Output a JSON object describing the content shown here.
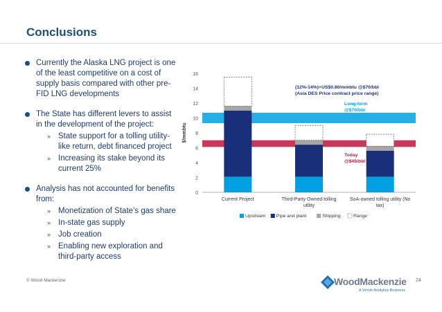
{
  "slide": {
    "title": "Conclusions",
    "footer_left": "© Wood Mackenzie",
    "page_number": "24",
    "logo_word": "WoodMackenzie",
    "logo_sub": "A Verisk Analytics Business"
  },
  "bullets": [
    {
      "text": "Currently the Alaska LNG project is one of the least competitive on a cost of supply basis compared with other pre-FID LNG developments",
      "subs": []
    },
    {
      "text": "The State has different  levers to assist in the development of the project:",
      "subs": [
        "State support for a tolling utility-like return, debt financed project",
        "Increasing its stake beyond its current 25%"
      ]
    },
    {
      "text": "Analysis has not accounted for benefits from:",
      "subs": [
        "Monetization of State’s gas share",
        "In-state gas supply",
        "Job creation",
        "Enabling new exploration and third-party access"
      ]
    }
  ],
  "chart_data": {
    "type": "bar",
    "stacked": true,
    "ylabel": "$/mmbtu",
    "ylim": [
      0,
      16
    ],
    "yticks": [
      "0",
      "2",
      "4",
      "6",
      "8",
      "10",
      "12",
      "14",
      "16"
    ],
    "categories": [
      "Current Project",
      "Third-Party Owned tolling utility",
      "SoA-owned tolling utility (No tax)"
    ],
    "series": [
      {
        "name": "Upstream",
        "color": "#00a0e3",
        "values": [
          2.1,
          2.1,
          2.1
        ]
      },
      {
        "name": "Pipe and plant",
        "color": "#1a2f7a",
        "values": [
          8.9,
          4.3,
          3.5
        ]
      },
      {
        "name": "Shipping",
        "color": "#a6a6a6",
        "values": [
          0.6,
          0.6,
          0.6
        ]
      },
      {
        "name": "Range",
        "color": "#ffffff",
        "values": [
          3.9,
          2.0,
          1.6
        ]
      }
    ],
    "bands": [
      {
        "label": "Long-term @$70/bbl",
        "low": 9.3,
        "high": 10.7,
        "color": "#00a0e3"
      },
      {
        "label": "Today @$45/bbl",
        "low": 6.1,
        "high": 7.0,
        "color": "#c0143c"
      }
    ],
    "annotation": "(12%-14%)+US$0.80/mmbtu @$70/bbl\n(Asia DES Price contract price range)",
    "legend": [
      "Upstream",
      "Pipe and plant",
      "Shipping",
      "Range"
    ]
  }
}
